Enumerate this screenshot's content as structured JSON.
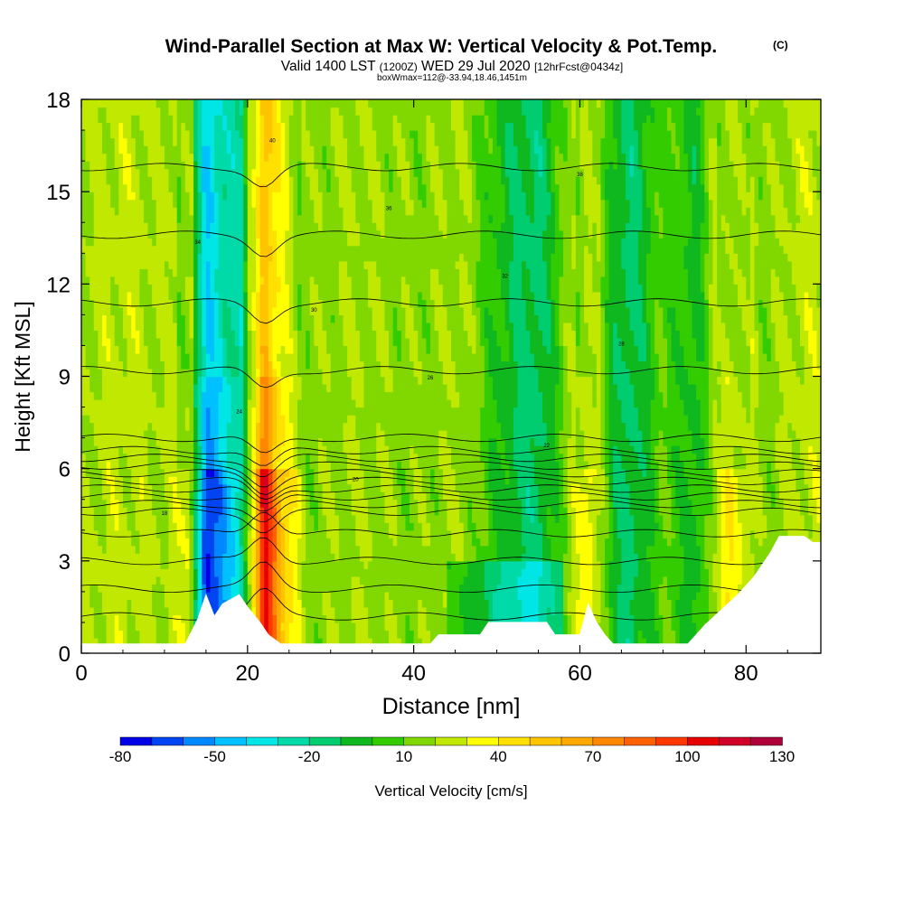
{
  "title": {
    "main": "Wind-Parallel Section at Max W: Vertical Velocity & Pot.Temp.",
    "copyright": "(C)",
    "valid_prefix": "Valid 1400 LST",
    "valid_zulu": "(1200Z)",
    "valid_date": "WED 29 Jul 2020",
    "forecast": "[12hrFcst@0434z]",
    "subtitle": "boxWmax=112@-33.94,18.46,1451m"
  },
  "chart_data": {
    "type": "heatmap",
    "title": "Wind-Parallel Section at Max W: Vertical Velocity & Pot.Temp.",
    "xlabel": "Distance [nm]",
    "ylabel": "Height [Kft MSL]",
    "xlim": [
      0,
      89
    ],
    "ylim": [
      0,
      18
    ],
    "x_ticks": [
      0,
      20,
      40,
      60,
      80
    ],
    "y_ticks": [
      0,
      3,
      6,
      9,
      12,
      15,
      18
    ],
    "colorbar": {
      "label": "Vertical Velocity [cm/s]",
      "tick_labels": [
        "-80",
        "-50",
        "-20",
        "10",
        "40",
        "70",
        "100",
        "130"
      ],
      "tick_values": [
        -80,
        -50,
        -20,
        10,
        40,
        70,
        100,
        130
      ],
      "range": [
        -80,
        130
      ],
      "colors": [
        "#0000e6",
        "#0044f2",
        "#0088ff",
        "#00c0ff",
        "#00e6e6",
        "#00d9a8",
        "#00cc70",
        "#10b820",
        "#33cc00",
        "#80d800",
        "#c0e800",
        "#ffff00",
        "#ffe000",
        "#ffc400",
        "#ffa800",
        "#ff8800",
        "#ff6000",
        "#ff3800",
        "#e60000",
        "#d00028",
        "#b0003c"
      ]
    },
    "contour_levels_theta": [
      16,
      18,
      20,
      22,
      24,
      26,
      28,
      30,
      32,
      34,
      36,
      38,
      40,
      42,
      44,
      46,
      48,
      50
    ],
    "contour_annotations": [
      "18",
      "20",
      "22",
      "24",
      "26",
      "28",
      "30",
      "32",
      "34",
      "36",
      "38",
      "40"
    ],
    "column_w_profile": [
      {
        "x": 0,
        "w": 20
      },
      {
        "x": 5,
        "w": 25
      },
      {
        "x": 10,
        "w": 20
      },
      {
        "x": 13,
        "w": 30
      },
      {
        "x": 15,
        "w": -75
      },
      {
        "x": 17,
        "w": -50
      },
      {
        "x": 19,
        "w": -35
      },
      {
        "x": 21,
        "w": 55
      },
      {
        "x": 22,
        "w": 110
      },
      {
        "x": 24,
        "w": 60
      },
      {
        "x": 27,
        "w": 15
      },
      {
        "x": 33,
        "w": 20
      },
      {
        "x": 40,
        "w": 15
      },
      {
        "x": 46,
        "w": 20
      },
      {
        "x": 52,
        "w": -10
      },
      {
        "x": 55,
        "w": -15
      },
      {
        "x": 58,
        "w": 10
      },
      {
        "x": 61,
        "w": 40
      },
      {
        "x": 64,
        "w": -5
      },
      {
        "x": 66,
        "w": -15
      },
      {
        "x": 70,
        "w": 10
      },
      {
        "x": 74,
        "w": -5
      },
      {
        "x": 77,
        "w": 30
      },
      {
        "x": 78,
        "w": 40
      },
      {
        "x": 82,
        "w": 15
      },
      {
        "x": 87,
        "w": 25
      }
    ],
    "terrain_profile": [
      {
        "x": 0,
        "h": 0.3
      },
      {
        "x": 12.5,
        "h": 0.3
      },
      {
        "x": 14,
        "h": 1.1
      },
      {
        "x": 15,
        "h": 1.9
      },
      {
        "x": 16,
        "h": 1.2
      },
      {
        "x": 17,
        "h": 1.6
      },
      {
        "x": 19,
        "h": 1.9
      },
      {
        "x": 20,
        "h": 1.5
      },
      {
        "x": 21.5,
        "h": 1.0
      },
      {
        "x": 22.5,
        "h": 0.6
      },
      {
        "x": 24,
        "h": 0.3
      },
      {
        "x": 42,
        "h": 0.3
      },
      {
        "x": 43,
        "h": 0.6
      },
      {
        "x": 48,
        "h": 0.6
      },
      {
        "x": 49,
        "h": 1.0
      },
      {
        "x": 56,
        "h": 1.0
      },
      {
        "x": 57,
        "h": 0.6
      },
      {
        "x": 60,
        "h": 0.6
      },
      {
        "x": 61,
        "h": 1.6
      },
      {
        "x": 62,
        "h": 1.0
      },
      {
        "x": 63,
        "h": 0.6
      },
      {
        "x": 64,
        "h": 0.3
      },
      {
        "x": 73,
        "h": 0.3
      },
      {
        "x": 75,
        "h": 0.9
      },
      {
        "x": 77,
        "h": 1.4
      },
      {
        "x": 79,
        "h": 1.9
      },
      {
        "x": 81,
        "h": 2.5
      },
      {
        "x": 83,
        "h": 3.3
      },
      {
        "x": 84,
        "h": 3.8
      },
      {
        "x": 87,
        "h": 3.8
      },
      {
        "x": 88,
        "h": 3.6
      },
      {
        "x": 89,
        "h": 3.6
      }
    ]
  }
}
